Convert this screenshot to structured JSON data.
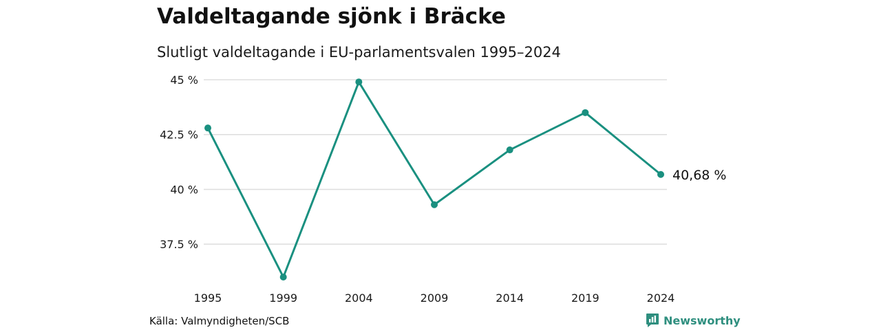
{
  "title": "Valdeltagande sjönk i Bräcke",
  "subtitle": "Slutligt valdeltagande i EU-parlamentsvalen 1995–2024",
  "source": "Källa: Valmyndigheten/SCB",
  "brand": {
    "name": "Newsworthy",
    "icon": "newsworthy-logo-icon"
  },
  "colors": {
    "line": "#1a9080",
    "grid": "#dddddd",
    "brand": "#2f8f7f"
  },
  "chart_data": {
    "type": "line",
    "title": "Valdeltagande sjönk i Bräcke",
    "subtitle": "Slutligt valdeltagande i EU-parlamentsvalen 1995–2024",
    "xlabel": "",
    "ylabel": "",
    "categories": [
      "1995",
      "1999",
      "2004",
      "2009",
      "2014",
      "2019",
      "2024"
    ],
    "series": [
      {
        "values": [
          42.8,
          36.0,
          44.9,
          39.3,
          41.8,
          43.5,
          40.68
        ]
      }
    ],
    "y_ticks": [
      37.5,
      40,
      42.5,
      45
    ],
    "y_tick_labels": [
      "37.5 %",
      "40 %",
      "42.5 %",
      "45 %"
    ],
    "ylim": [
      36.0,
      45.0
    ],
    "grid": true,
    "end_label": "40,68 %"
  }
}
